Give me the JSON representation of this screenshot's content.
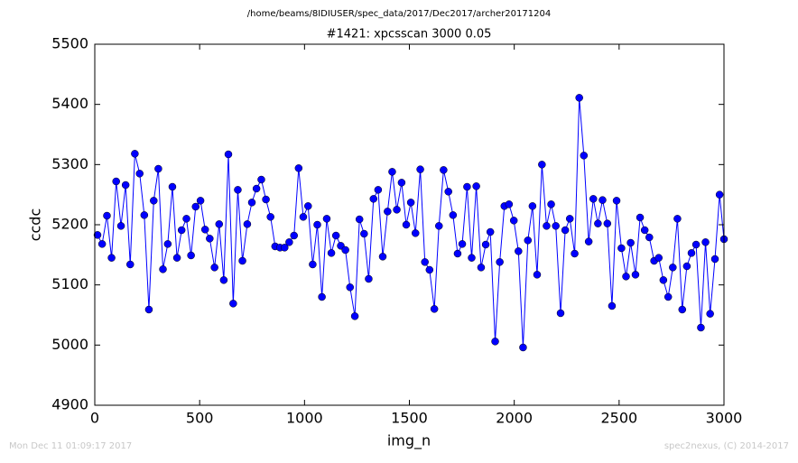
{
  "chart_data": {
    "type": "line",
    "suptitle": "/home/beams/8IDIUSER/spec_data/2017/Dec2017/archer20171204",
    "title": "#1421: xpcsscan 3000 0.05",
    "xlabel": "img_n",
    "ylabel": "ccdc",
    "annotations": [
      "Mon Dec 11 01:09:17 2017",
      "spec2nexus, (C) 2014-2017"
    ],
    "xlim": [
      0,
      3000
    ],
    "ylim": [
      4900,
      5500
    ],
    "xticks": [
      0,
      500,
      1000,
      1500,
      2000,
      2500,
      3000
    ],
    "yticks": [
      4900,
      5000,
      5100,
      5200,
      5300,
      5400,
      5500
    ],
    "grid": false,
    "x": [
      13,
      35,
      58,
      80,
      102,
      125,
      147,
      169,
      191,
      214,
      236,
      258,
      281,
      303,
      325,
      348,
      370,
      392,
      414,
      437,
      459,
      481,
      504,
      526,
      548,
      571,
      593,
      615,
      637,
      660,
      682,
      704,
      727,
      749,
      771,
      794,
      816,
      838,
      860,
      883,
      905,
      927,
      950,
      972,
      994,
      1017,
      1039,
      1061,
      1083,
      1106,
      1128,
      1150,
      1173,
      1195,
      1217,
      1240,
      1262,
      1284,
      1306,
      1329,
      1351,
      1373,
      1396,
      1418,
      1440,
      1463,
      1485,
      1507,
      1529,
      1552,
      1574,
      1596,
      1619,
      1641,
      1663,
      1686,
      1708,
      1730,
      1752,
      1775,
      1797,
      1819,
      1842,
      1864,
      1886,
      1909,
      1931,
      1953,
      1975,
      1998,
      2020,
      2042,
      2065,
      2087,
      2109,
      2132,
      2154,
      2176,
      2198,
      2221,
      2243,
      2265,
      2288,
      2310,
      2332,
      2355,
      2377,
      2399,
      2421,
      2444,
      2466,
      2488,
      2511,
      2533,
      2555,
      2578,
      2600,
      2622,
      2644,
      2667,
      2689,
      2711,
      2734,
      2756,
      2778,
      2801,
      2823,
      2845,
      2867,
      2890,
      2912,
      2934,
      2957,
      2979,
      3000
    ],
    "series": [
      {
        "name": "ccdc",
        "color": "#0000ff",
        "values": [
          5183,
          5168,
          5215,
          5145,
          5272,
          5198,
          5266,
          5134,
          5318,
          5285,
          5216,
          5059,
          5240,
          5293,
          5126,
          5168,
          5263,
          5145,
          5191,
          5210,
          5149,
          5230,
          5240,
          5192,
          5177,
          5129,
          5201,
          5108,
          5317,
          5069,
          5258,
          5140,
          5201,
          5237,
          5260,
          5275,
          5242,
          5213,
          5164,
          5162,
          5162,
          5171,
          5182,
          5294,
          5213,
          5231,
          5134,
          5200,
          5080,
          5210,
          5153,
          5182,
          5165,
          5158,
          5096,
          5048,
          5209,
          5185,
          5110,
          5243,
          5258,
          5147,
          5222,
          5288,
          5225,
          5270,
          5200,
          5237,
          5186,
          5292,
          5138,
          5125,
          5060,
          5198,
          5291,
          5255,
          5216,
          5152,
          5168,
          5263,
          5145,
          5264,
          5129,
          5167,
          5188,
          5006,
          5138,
          5231,
          5234,
          5207,
          5156,
          4996,
          5174,
          5231,
          5117,
          5300,
          5198,
          5234,
          5198,
          5053,
          5191,
          5210,
          5152,
          5411,
          5315,
          5172,
          5243,
          5202,
          5241,
          5202,
          5065,
          5240,
          5161,
          5114,
          5170,
          5117,
          5212,
          5191,
          5179,
          5140,
          5145,
          5108,
          5080,
          5129,
          5210,
          5059,
          5131,
          5153,
          5167,
          5029,
          5171,
          5052,
          5143,
          5250,
          5176
        ]
      }
    ]
  }
}
